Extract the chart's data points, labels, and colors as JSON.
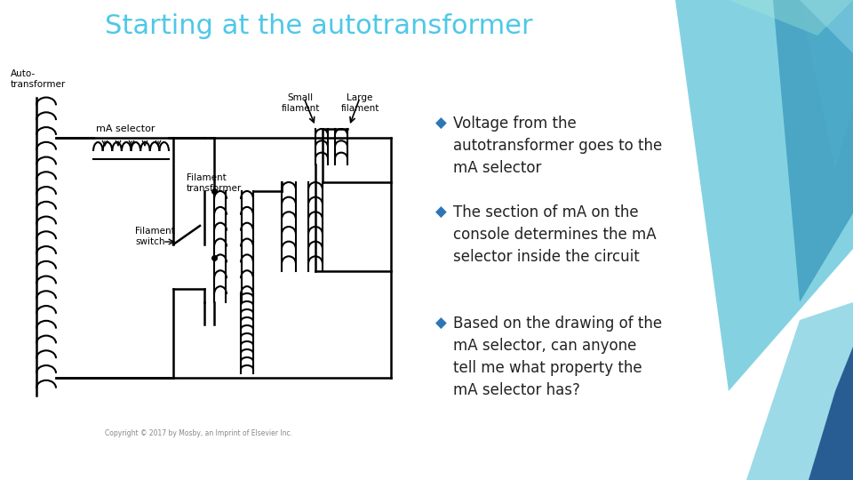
{
  "title": "Starting at the autotransformer",
  "title_color": "#4EC8E8",
  "title_fontsize": 22,
  "bg_color": "#FFFFFF",
  "bullet_color": "#2E75B6",
  "text_color": "#222222",
  "bullets": [
    "Voltage from the\nautotransformer goes to the\nmA selector",
    "The section of mA on the\nconsole determines the mA\nselector inside the circuit",
    "Based on the drawing of the\nmA selector, can anyone\ntell me what property the\nmA selector has?"
  ],
  "fig_width": 9.6,
  "fig_height": 5.4,
  "dpi": 100,
  "copyright": "Copyright © 2017 by Mosby, an Imprint of Elsevier Inc."
}
